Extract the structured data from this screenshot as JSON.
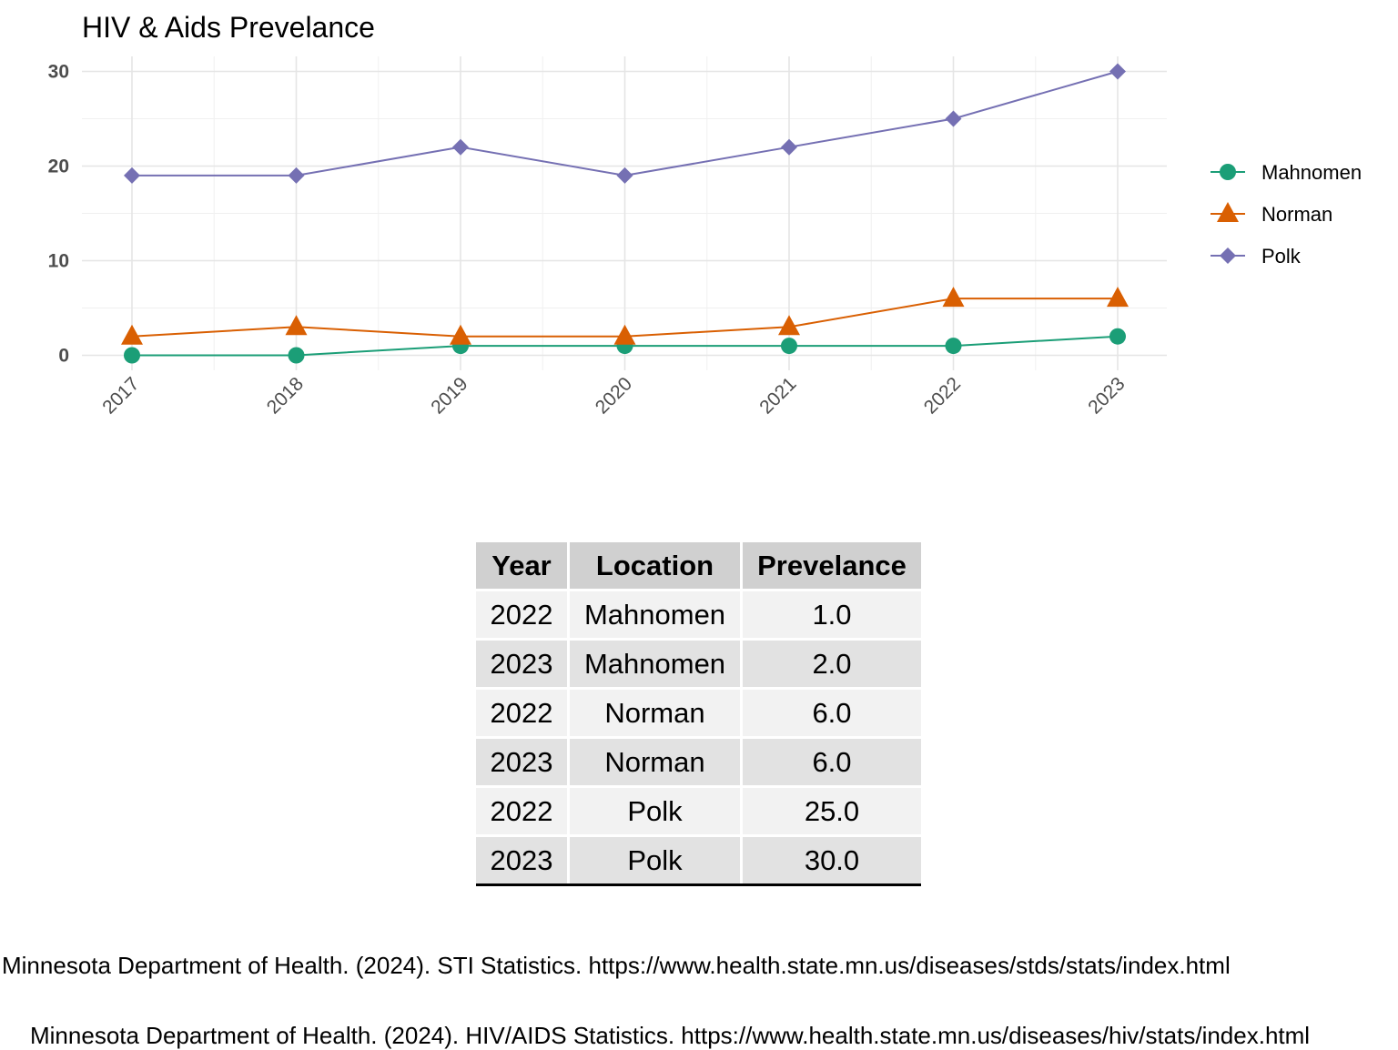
{
  "chart_data": {
    "type": "line",
    "title": "HIV & Aids Prevelance",
    "xlabel": "",
    "ylabel": "",
    "x": [
      "2017",
      "2018",
      "2019",
      "2020",
      "2021",
      "2022",
      "2023"
    ],
    "yticks": [
      "0",
      "10",
      "20",
      "30"
    ],
    "ylim": [
      -1.5,
      31.5
    ],
    "grid": true,
    "legend_position": "right",
    "series": [
      {
        "name": "Mahnomen",
        "color": "#1b9e77",
        "marker": "circle",
        "values": [
          0,
          0,
          1,
          1,
          1,
          1,
          2
        ]
      },
      {
        "name": "Norman",
        "color": "#d95f02",
        "marker": "triangle",
        "values": [
          2,
          3,
          2,
          2,
          3,
          6,
          6
        ]
      },
      {
        "name": "Polk",
        "color": "#7570b3",
        "marker": "diamond",
        "values": [
          19,
          19,
          22,
          19,
          22,
          25,
          30
        ]
      }
    ]
  },
  "table": {
    "headers": [
      "Year",
      "Location",
      "Prevelance"
    ],
    "rows": [
      [
        "2022",
        "Mahnomen",
        "1.0"
      ],
      [
        "2023",
        "Mahnomen",
        "2.0"
      ],
      [
        "2022",
        "Norman",
        "6.0"
      ],
      [
        "2023",
        "Norman",
        "6.0"
      ],
      [
        "2022",
        "Polk",
        "25.0"
      ],
      [
        "2023",
        "Polk",
        "30.0"
      ]
    ]
  },
  "citations": [
    "Minnesota Department of Health. (2024). STI Statistics. https://www.health.state.mn.us/diseases/stds/stats/index.html",
    "Minnesota Department of Health. (2024). HIV/AIDS Statistics. https://www.health.state.mn.us/diseases/hiv/stats/index.html"
  ]
}
